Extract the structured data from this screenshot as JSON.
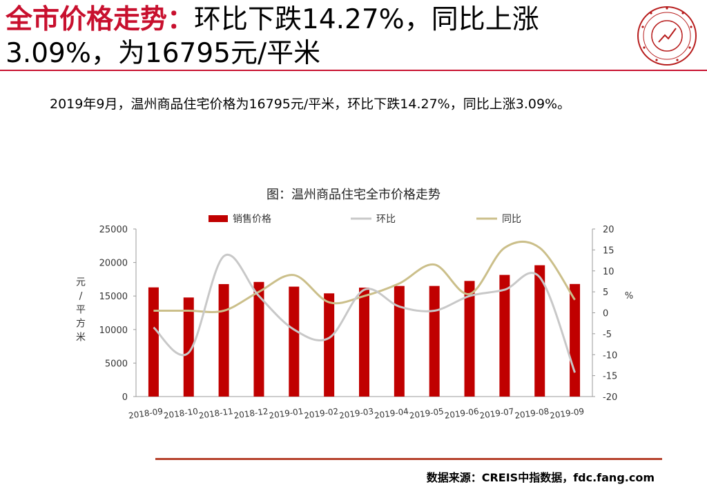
{
  "header": {
    "title_accent": "全市价格走势：",
    "title_rest": "环比下跌14.27%，同比上涨3.09%，为16795元/平米"
  },
  "logo": {
    "icon": "china-index-academy-seal-icon"
  },
  "summary": "2019年9月，温州商品住宅价格为16795元/平米，环比下跌14.27%，同比上涨3.09%。",
  "source": "数据来源：CREIS中指数据，fdc.fang.com",
  "colors": {
    "accent": "#c8102e",
    "bar": "#c00000",
    "mom_line": "#c8c8c8",
    "yoy_line": "#cbbf8a",
    "source_rule": "#b5402a"
  },
  "chart_data": {
    "type": "bar",
    "title": "图：温州商品住宅全市价格走势",
    "categories": [
      "2018-09",
      "2018-10",
      "2018-11",
      "2018-12",
      "2019-01",
      "2019-02",
      "2019-03",
      "2019-04",
      "2019-05",
      "2019-06",
      "2019-07",
      "2019-08",
      "2019-09"
    ],
    "ylabel": "元/平方米",
    "y2label": "%",
    "ylim": [
      0,
      25000
    ],
    "yticks": [
      0,
      5000,
      10000,
      15000,
      20000,
      25000
    ],
    "y2lim": [
      -20,
      20
    ],
    "y2ticks": [
      -20,
      -15,
      -10,
      -5,
      0,
      5,
      10,
      15,
      20
    ],
    "legend_position": "top",
    "grid": false,
    "series": [
      {
        "name": "销售价格",
        "type": "bar",
        "axis": "left",
        "values": [
          16290,
          14780,
          16780,
          17100,
          16400,
          15400,
          16250,
          16500,
          16500,
          17250,
          18150,
          19590,
          16795
        ]
      },
      {
        "name": "环比",
        "type": "line",
        "axis": "right",
        "values": [
          -3.5,
          -9.5,
          13.5,
          4.0,
          -4.0,
          -6.0,
          5.5,
          1.5,
          0.5,
          4.0,
          5.5,
          8.5,
          -14.27
        ]
      },
      {
        "name": "同比",
        "type": "line",
        "axis": "right",
        "values": [
          0.5,
          0.5,
          0.5,
          5.0,
          9.0,
          2.5,
          4.0,
          7.0,
          11.5,
          4.5,
          15.5,
          15.5,
          3.09
        ]
      }
    ]
  }
}
